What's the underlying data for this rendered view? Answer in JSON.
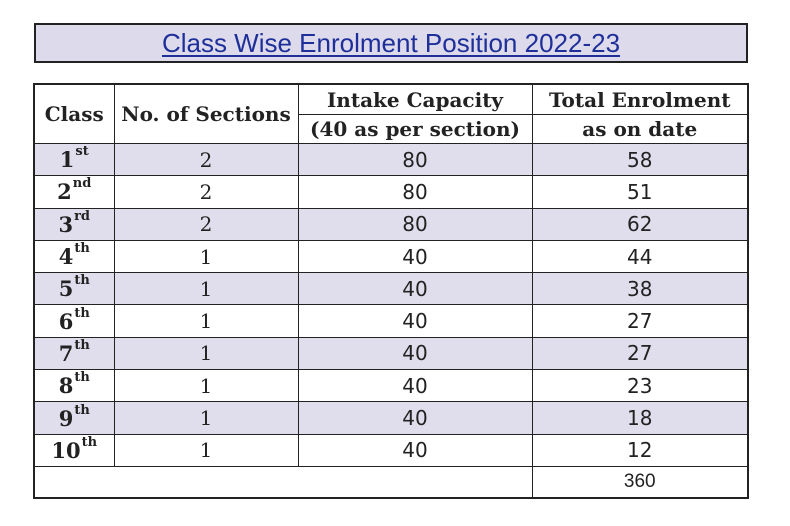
{
  "title": "Class Wise Enrolment Position 2022-23",
  "table": {
    "headers": {
      "class": "Class",
      "sections": "No. of Sections",
      "capacity_line1": "Intake Capacity",
      "capacity_line2": "(40 as per section)",
      "enrolment_line1": "Total Enrolment",
      "enrolment_line2": "as on date"
    },
    "rows": [
      {
        "class_num": "1",
        "class_sup": "st",
        "sections": "2",
        "capacity": "80",
        "enrolment": "58"
      },
      {
        "class_num": "2",
        "class_sup": "nd",
        "sections": "2",
        "capacity": "80",
        "enrolment": "51"
      },
      {
        "class_num": "3",
        "class_sup": "rd",
        "sections": "2",
        "capacity": "80",
        "enrolment": "62"
      },
      {
        "class_num": "4",
        "class_sup": "th",
        "sections": "1",
        "capacity": "40",
        "enrolment": "44"
      },
      {
        "class_num": "5",
        "class_sup": "th",
        "sections": "1",
        "capacity": "40",
        "enrolment": "38"
      },
      {
        "class_num": "6",
        "class_sup": "th",
        "sections": "1",
        "capacity": "40",
        "enrolment": "27"
      },
      {
        "class_num": "7",
        "class_sup": "th",
        "sections": "1",
        "capacity": "40",
        "enrolment": "27"
      },
      {
        "class_num": "8",
        "class_sup": "th",
        "sections": "1",
        "capacity": "40",
        "enrolment": "23"
      },
      {
        "class_num": "9",
        "class_sup": "th",
        "sections": "1",
        "capacity": "40",
        "enrolment": "18"
      },
      {
        "class_num": "10",
        "class_sup": "th",
        "sections": "1",
        "capacity": "40",
        "enrolment": "12"
      }
    ],
    "total": "360"
  },
  "colors": {
    "title_text": "#1f2f9a",
    "title_background": "#dcdaeb",
    "row_shade": "#e0deed",
    "border": "#222222"
  }
}
